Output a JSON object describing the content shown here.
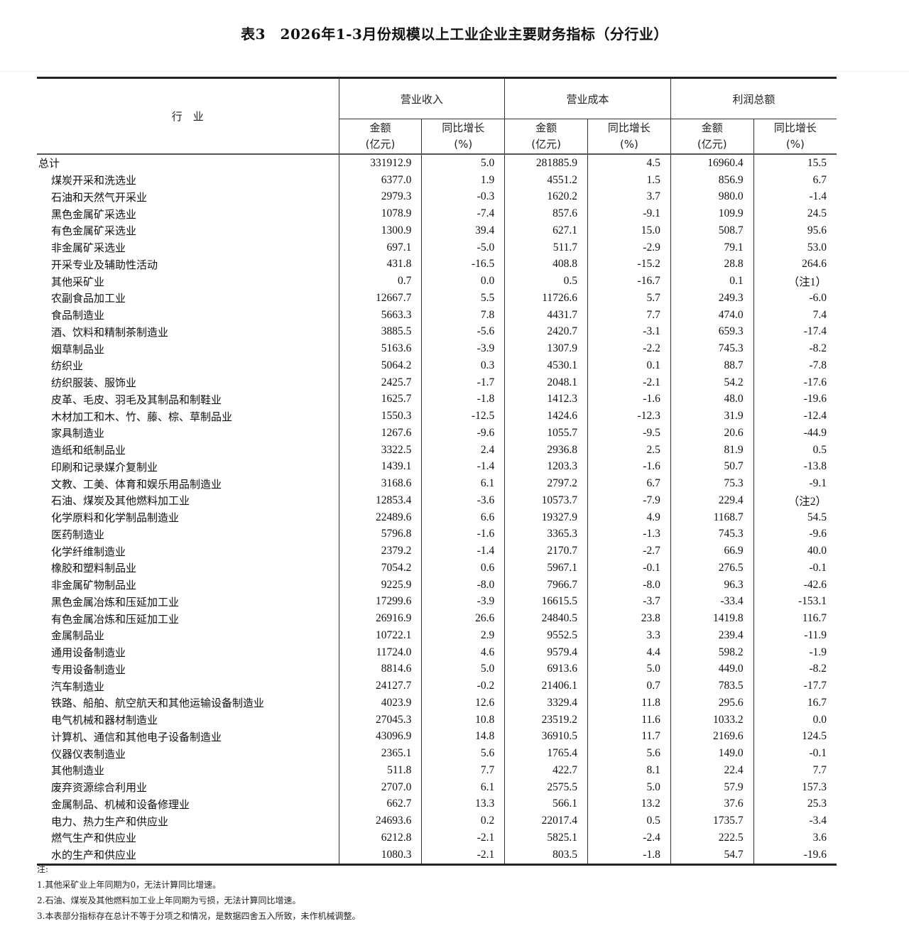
{
  "title": "表3　2026年1-3月份规模以上工业企业主要财务指标（分行业）",
  "header": {
    "industry": "行　业",
    "groups": [
      "营业收入",
      "营业成本",
      "利润总额"
    ],
    "amount": "金额",
    "amount_unit": "(亿元)",
    "growth": "同比增长",
    "growth_unit": "(%)"
  },
  "rows": [
    [
      "总计",
      "331912.9",
      "5.0",
      "281885.9",
      "4.5",
      "16960.4",
      "15.5"
    ],
    [
      "煤炭开采和洗选业",
      "6377.0",
      "1.9",
      "4551.2",
      "1.5",
      "856.9",
      "6.7"
    ],
    [
      "石油和天然气开采业",
      "2979.3",
      "-0.3",
      "1620.2",
      "3.7",
      "980.0",
      "-1.4"
    ],
    [
      "黑色金属矿采选业",
      "1078.9",
      "-7.4",
      "857.6",
      "-9.1",
      "109.9",
      "24.5"
    ],
    [
      "有色金属矿采选业",
      "1300.9",
      "39.4",
      "627.1",
      "15.0",
      "508.7",
      "95.6"
    ],
    [
      "非金属矿采选业",
      "697.1",
      "-5.0",
      "511.7",
      "-2.9",
      "79.1",
      "53.0"
    ],
    [
      "开采专业及辅助性活动",
      "431.8",
      "-16.5",
      "408.8",
      "-15.2",
      "28.8",
      "264.6"
    ],
    [
      "其他采矿业",
      "0.7",
      "0.0",
      "0.5",
      "-16.7",
      "0.1",
      "（注1）"
    ],
    [
      "农副食品加工业",
      "12667.7",
      "5.5",
      "11726.6",
      "5.7",
      "249.3",
      "-6.0"
    ],
    [
      "食品制造业",
      "5663.3",
      "7.8",
      "4431.7",
      "7.7",
      "474.0",
      "7.4"
    ],
    [
      "酒、饮料和精制茶制造业",
      "3885.5",
      "-5.6",
      "2420.7",
      "-3.1",
      "659.3",
      "-17.4"
    ],
    [
      "烟草制品业",
      "5163.6",
      "-3.9",
      "1307.9",
      "-2.2",
      "745.3",
      "-8.2"
    ],
    [
      "纺织业",
      "5064.2",
      "0.3",
      "4530.1",
      "0.1",
      "88.7",
      "-7.8"
    ],
    [
      "纺织服装、服饰业",
      "2425.7",
      "-1.7",
      "2048.1",
      "-2.1",
      "54.2",
      "-17.6"
    ],
    [
      "皮革、毛皮、羽毛及其制品和制鞋业",
      "1625.7",
      "-1.8",
      "1412.3",
      "-1.6",
      "48.0",
      "-19.6"
    ],
    [
      "木材加工和木、竹、藤、棕、草制品业",
      "1550.3",
      "-12.5",
      "1424.6",
      "-12.3",
      "31.9",
      "-12.4"
    ],
    [
      "家具制造业",
      "1267.6",
      "-9.6",
      "1055.7",
      "-9.5",
      "20.6",
      "-44.9"
    ],
    [
      "造纸和纸制品业",
      "3322.5",
      "2.4",
      "2936.8",
      "2.5",
      "81.9",
      "0.5"
    ],
    [
      "印刷和记录媒介复制业",
      "1439.1",
      "-1.4",
      "1203.3",
      "-1.6",
      "50.7",
      "-13.8"
    ],
    [
      "文教、工美、体育和娱乐用品制造业",
      "3168.6",
      "6.1",
      "2797.2",
      "6.7",
      "75.3",
      "-9.1"
    ],
    [
      "石油、煤炭及其他燃料加工业",
      "12853.4",
      "-3.6",
      "10573.7",
      "-7.9",
      "229.4",
      "（注2）"
    ],
    [
      "化学原料和化学制品制造业",
      "22489.6",
      "6.6",
      "19327.9",
      "4.9",
      "1168.7",
      "54.5"
    ],
    [
      "医药制造业",
      "5796.8",
      "-1.6",
      "3365.3",
      "-1.3",
      "745.3",
      "-9.6"
    ],
    [
      "化学纤维制造业",
      "2379.2",
      "-1.4",
      "2170.7",
      "-2.7",
      "66.9",
      "40.0"
    ],
    [
      "橡胶和塑料制品业",
      "7054.2",
      "0.6",
      "5967.1",
      "-0.1",
      "276.5",
      "-0.1"
    ],
    [
      "非金属矿物制品业",
      "9225.9",
      "-8.0",
      "7966.7",
      "-8.0",
      "96.3",
      "-42.6"
    ],
    [
      "黑色金属冶炼和压延加工业",
      "17299.6",
      "-3.9",
      "16615.5",
      "-3.7",
      "-33.4",
      "-153.1"
    ],
    [
      "有色金属冶炼和压延加工业",
      "26916.9",
      "26.6",
      "24840.5",
      "23.8",
      "1419.8",
      "116.7"
    ],
    [
      "金属制品业",
      "10722.1",
      "2.9",
      "9552.5",
      "3.3",
      "239.4",
      "-11.9"
    ],
    [
      "通用设备制造业",
      "11724.0",
      "4.6",
      "9579.4",
      "4.4",
      "598.2",
      "-1.9"
    ],
    [
      "专用设备制造业",
      "8814.6",
      "5.0",
      "6913.6",
      "5.0",
      "449.0",
      "-8.2"
    ],
    [
      "汽车制造业",
      "24127.7",
      "-0.2",
      "21406.1",
      "0.7",
      "783.5",
      "-17.7"
    ],
    [
      "铁路、船舶、航空航天和其他运输设备制造业",
      "4023.9",
      "12.6",
      "3329.4",
      "11.8",
      "295.6",
      "16.7"
    ],
    [
      "电气机械和器材制造业",
      "27045.3",
      "10.8",
      "23519.2",
      "11.6",
      "1033.2",
      "0.0"
    ],
    [
      "计算机、通信和其他电子设备制造业",
      "43096.9",
      "14.8",
      "36910.5",
      "11.7",
      "2169.6",
      "124.5"
    ],
    [
      "仪器仪表制造业",
      "2365.1",
      "5.6",
      "1765.4",
      "5.6",
      "149.0",
      "-0.1"
    ],
    [
      "其他制造业",
      "511.8",
      "7.7",
      "422.7",
      "8.1",
      "22.4",
      "7.7"
    ],
    [
      "废弃资源综合利用业",
      "2707.0",
      "6.1",
      "2575.5",
      "5.0",
      "57.9",
      "157.3"
    ],
    [
      "金属制品、机械和设备修理业",
      "662.7",
      "13.3",
      "566.1",
      "13.2",
      "37.6",
      "25.3"
    ],
    [
      "电力、热力生产和供应业",
      "24693.6",
      "0.2",
      "22017.4",
      "0.5",
      "1735.7",
      "-3.4"
    ],
    [
      "燃气生产和供应业",
      "6212.8",
      "-2.1",
      "5825.1",
      "-2.4",
      "222.5",
      "3.6"
    ],
    [
      "水的生产和供应业",
      "1080.3",
      "-2.1",
      "803.5",
      "-1.8",
      "54.7",
      "-19.6"
    ]
  ],
  "notes": {
    "label": "注:",
    "items": [
      "1.其他采矿业上年同期为0，无法计算同比增速。",
      "2.石油、煤炭及其他燃料加工业上年同期为亏损，无法计算同比增速。",
      "3.本表部分指标存在总计不等于分项之和情况，是数据四舍五入所致，未作机械调整。"
    ]
  }
}
